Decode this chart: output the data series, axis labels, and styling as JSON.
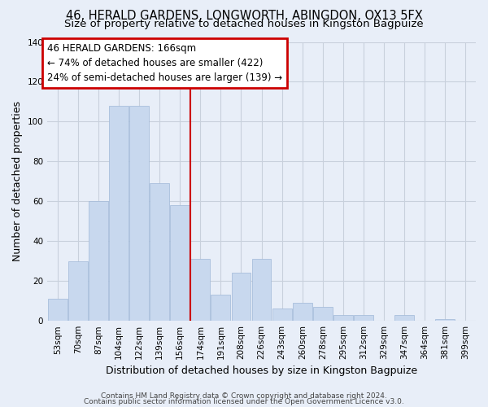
{
  "title": "46, HERALD GARDENS, LONGWORTH, ABINGDON, OX13 5FX",
  "subtitle": "Size of property relative to detached houses in Kingston Bagpuize",
  "xlabel": "Distribution of detached houses by size in Kingston Bagpuize",
  "ylabel": "Number of detached properties",
  "bar_labels": [
    "53sqm",
    "70sqm",
    "87sqm",
    "104sqm",
    "122sqm",
    "139sqm",
    "156sqm",
    "174sqm",
    "191sqm",
    "208sqm",
    "226sqm",
    "243sqm",
    "260sqm",
    "278sqm",
    "295sqm",
    "312sqm",
    "329sqm",
    "347sqm",
    "364sqm",
    "381sqm",
    "399sqm"
  ],
  "bar_values": [
    11,
    30,
    60,
    108,
    108,
    69,
    58,
    31,
    13,
    24,
    31,
    6,
    9,
    7,
    3,
    3,
    0,
    3,
    0,
    1,
    0
  ],
  "bar_color": "#c8d8ee",
  "bar_edge_color": "#a0b8d8",
  "vline_x": 7.5,
  "vline_color": "#cc0000",
  "annotation_line1": "46 HERALD GARDENS: 166sqm",
  "annotation_line2": "← 74% of detached houses are smaller (422)",
  "annotation_line3": "24% of semi-detached houses are larger (139) →",
  "annotation_box_color": "#cc0000",
  "ylim": [
    0,
    140
  ],
  "yticks": [
    0,
    20,
    40,
    60,
    80,
    100,
    120,
    140
  ],
  "footer_line1": "Contains HM Land Registry data © Crown copyright and database right 2024.",
  "footer_line2": "Contains public sector information licensed under the Open Government Licence v3.0.",
  "plot_bg_color": "#e8eef8",
  "fig_bg_color": "#e8eef8",
  "grid_color": "#c8d0dc",
  "title_fontsize": 10.5,
  "subtitle_fontsize": 9.5,
  "axis_label_fontsize": 9,
  "tick_fontsize": 7.5,
  "footer_fontsize": 6.5,
  "annotation_fontsize": 8.5
}
